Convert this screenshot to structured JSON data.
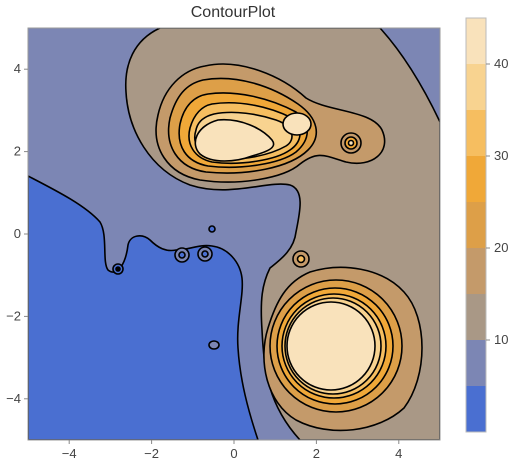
{
  "chart_data": {
    "type": "heatmap",
    "subtype": "contour",
    "title": "ContourPlot",
    "xlabel": "",
    "ylabel": "",
    "xlim": [
      -5,
      5
    ],
    "ylim": [
      -5,
      5
    ],
    "x_ticks": [
      -4,
      -2,
      0,
      2,
      4
    ],
    "y_ticks": [
      -4,
      -2,
      0,
      2,
      4
    ],
    "grid": false,
    "contour_levels": [
      5,
      10,
      15,
      20,
      25,
      30,
      35,
      40,
      45
    ],
    "colorbar": {
      "range": [
        0,
        45
      ],
      "ticks": [
        10,
        20,
        30,
        40
      ],
      "placement": "right",
      "bands": [
        "#4a6fd1",
        "#7c86b4",
        "#a99886",
        "#c49a6a",
        "#dd9f48",
        "#f0a838",
        "#f6be60",
        "#f8d390",
        "#f9e2bb"
      ]
    },
    "features": [
      {
        "kind": "peak",
        "x": 1.7,
        "y": 2.0
      },
      {
        "kind": "peak",
        "x": 2.4,
        "y": -2.8
      },
      {
        "kind": "peak",
        "x": 2.8,
        "y": 2.2
      },
      {
        "kind": "peak",
        "x": 1.6,
        "y": -0.6
      },
      {
        "kind": "trough",
        "x": -2.8,
        "y": -0.8
      },
      {
        "kind": "trough",
        "x": -1.3,
        "y": -0.5
      },
      {
        "kind": "trough",
        "x": -0.7,
        "y": -0.5
      },
      {
        "kind": "trough",
        "x": -0.5,
        "y": 0.1
      },
      {
        "kind": "trough",
        "x": -0.5,
        "y": -2.7
      }
    ]
  }
}
